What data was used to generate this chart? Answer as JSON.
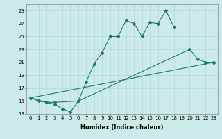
{
  "xlabel": "Humidex (Indice chaleur)",
  "ylabel": "",
  "bg_color": "#cceae7",
  "line_color": "#1a7a6e",
  "xlim": [
    -0.5,
    23.5
  ],
  "ylim": [
    13,
    30
  ],
  "yticks": [
    13,
    15,
    17,
    19,
    21,
    23,
    25,
    27,
    29
  ],
  "xticks": [
    0,
    1,
    2,
    3,
    4,
    5,
    6,
    7,
    8,
    9,
    10,
    11,
    12,
    13,
    14,
    15,
    16,
    17,
    18,
    19,
    20,
    21,
    22,
    23
  ],
  "line1_x": [
    0,
    1,
    2,
    3,
    4,
    5,
    6,
    7,
    8,
    9,
    10,
    11,
    12,
    13,
    14,
    15,
    16,
    17,
    18
  ],
  "line1_y": [
    15.5,
    15.0,
    14.8,
    14.5,
    13.8,
    13.3,
    15.0,
    18.0,
    20.8,
    22.5,
    25.0,
    25.0,
    27.5,
    27.0,
    25.0,
    27.2,
    27.0,
    29.0,
    26.5
  ],
  "line2_x": [
    0,
    2,
    3,
    6,
    20,
    21,
    22,
    23
  ],
  "line2_y": [
    15.5,
    14.8,
    14.8,
    15.0,
    23.0,
    21.5,
    21.0,
    21.0
  ],
  "line3_x": [
    0,
    23
  ],
  "line3_y": [
    15.5,
    21.0
  ],
  "marker": "D",
  "markersize": 2,
  "linewidth": 0.8,
  "tick_fontsize": 5.0,
  "xlabel_fontsize": 6.0
}
